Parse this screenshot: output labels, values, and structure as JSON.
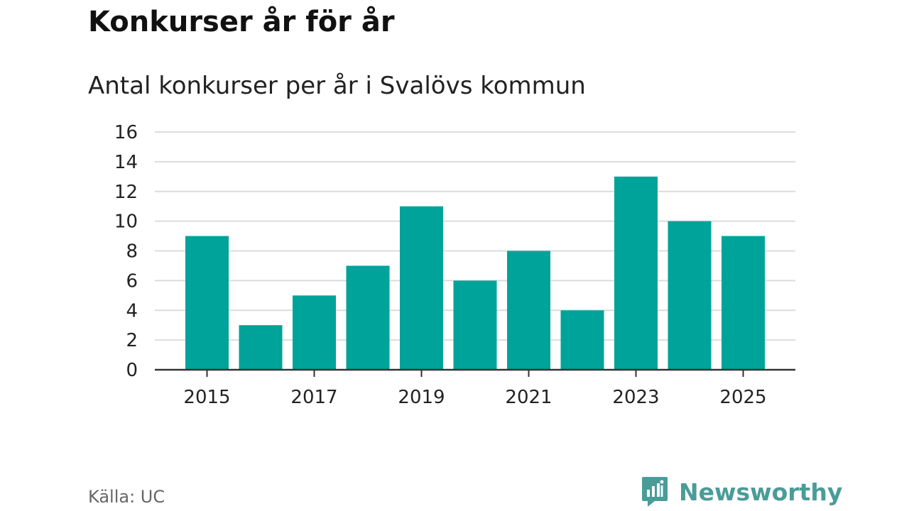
{
  "header": {
    "title": "Konkurser år för år",
    "subtitle": "Antal konkurser per år i Svalövs kommun"
  },
  "footer": {
    "source": "Källa: UC",
    "brand": "Newsworthy",
    "brand_icon": "bar-chart-speech-bubble-icon"
  },
  "colors": {
    "bar": "#00a39a",
    "grid": "#dcdcdc",
    "axis": "#333333",
    "brand": "#4a9c98"
  },
  "chart_data": {
    "type": "bar",
    "title": "Konkurser år för år",
    "subtitle": "Antal konkurser per år i Svalövs kommun",
    "categories": [
      "2015",
      "2016",
      "2017",
      "2018",
      "2019",
      "2020",
      "2021",
      "2022",
      "2023",
      "2024",
      "2025"
    ],
    "values": [
      9,
      3,
      5,
      7,
      11,
      6,
      8,
      4,
      13,
      10,
      9
    ],
    "x_tick_labels": [
      "2015",
      "2017",
      "2019",
      "2021",
      "2023",
      "2025"
    ],
    "y_ticks": [
      0,
      2,
      4,
      6,
      8,
      10,
      12,
      14,
      16
    ],
    "xlabel": "",
    "ylabel": "",
    "ylim": [
      0,
      16
    ],
    "grid": true,
    "legend": "none"
  }
}
